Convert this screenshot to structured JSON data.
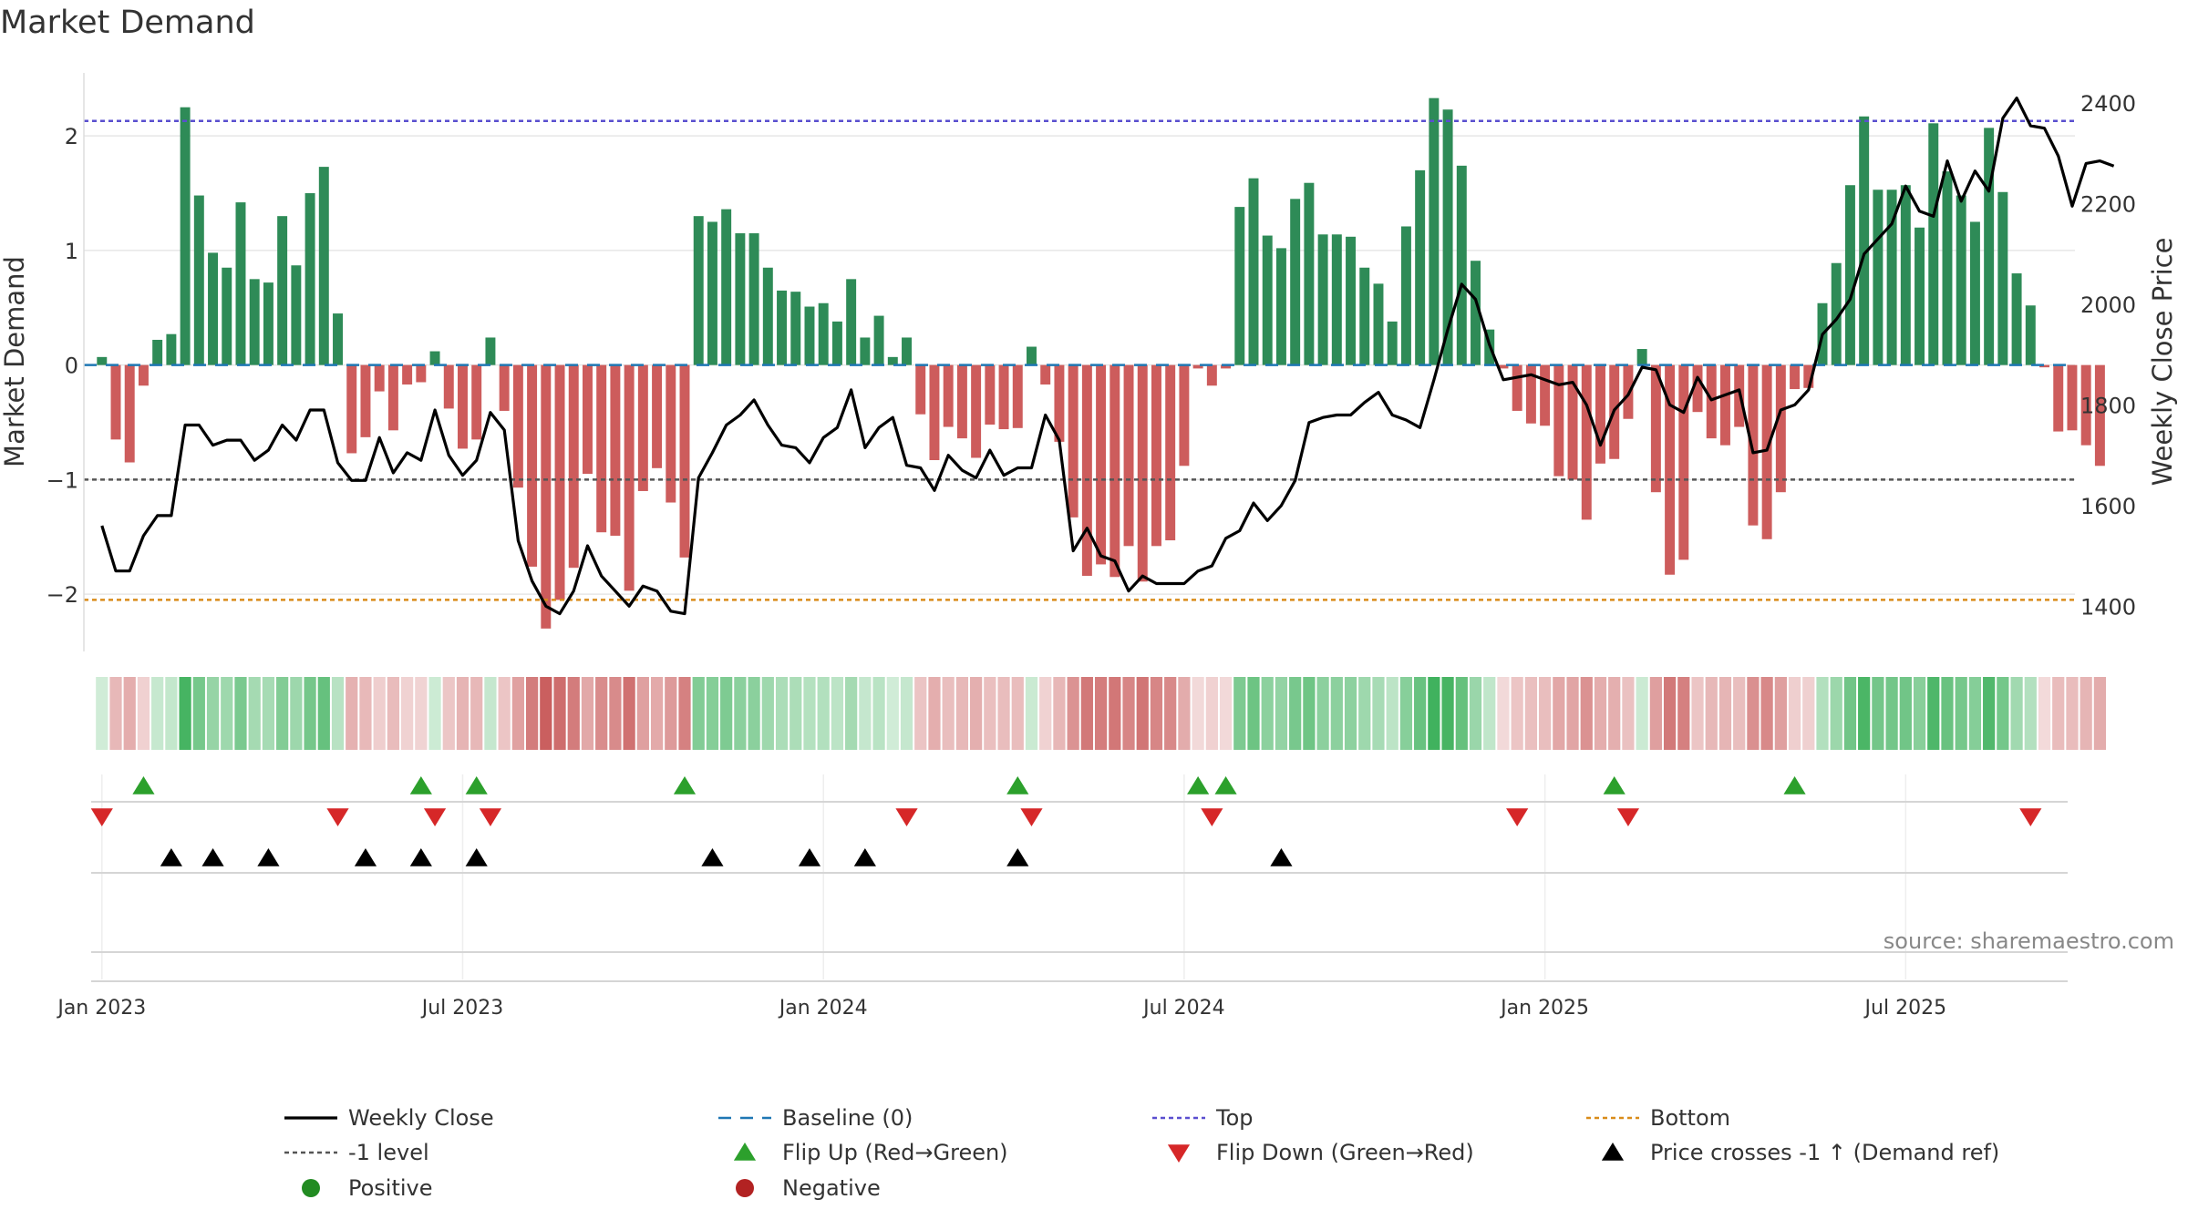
{
  "chart_data": {
    "type": "bar",
    "title": "Market Demand",
    "ylabel_left": "Market Demand",
    "ylabel_right": "Weekly Close Price",
    "source": "source: sharemaestro.com",
    "y_left_range": [
      -2.5,
      2.55
    ],
    "y_left_ticks": [
      {
        "v": 2,
        "label": "2"
      },
      {
        "v": 1,
        "label": "1"
      },
      {
        "v": 0,
        "label": "0"
      },
      {
        "v": -1,
        "label": "−1"
      },
      {
        "v": -2,
        "label": "−2"
      }
    ],
    "y_right_range": [
      1310,
      2460
    ],
    "y_right_ticks": [
      {
        "v": 2400,
        "label": "2400"
      },
      {
        "v": 2200,
        "label": "2200"
      },
      {
        "v": 2000,
        "label": "2000"
      },
      {
        "v": 1800,
        "label": "1800"
      },
      {
        "v": 1600,
        "label": "1600"
      },
      {
        "v": 1400,
        "label": "1400"
      }
    ],
    "x_ticks": [
      {
        "week": 0,
        "label": "Jan 2023"
      },
      {
        "week": 26,
        "label": "Jul 2023"
      },
      {
        "week": 52,
        "label": "Jan 2024"
      },
      {
        "week": 78,
        "label": "Jul 2024"
      },
      {
        "week": 104,
        "label": "Jan 2025"
      },
      {
        "week": 130,
        "label": "Jul 2025"
      }
    ],
    "weeks_range": [
      -1.3,
      142.2
    ],
    "levels": {
      "baseline": 0,
      "top": 2.13,
      "bottom": -2.05,
      "minus_one": -1
    },
    "demand": [
      0.07,
      -0.65,
      -0.85,
      -0.18,
      0.22,
      0.27,
      2.25,
      1.48,
      0.98,
      0.85,
      1.42,
      0.75,
      0.72,
      1.3,
      0.87,
      1.5,
      1.73,
      0.45,
      -0.77,
      -0.63,
      -0.23,
      -0.57,
      -0.17,
      -0.15,
      0.12,
      -0.38,
      -0.73,
      -0.65,
      0.24,
      -0.4,
      -1.07,
      -1.76,
      -2.3,
      -2.05,
      -1.77,
      -0.95,
      -1.46,
      -1.49,
      -1.97,
      -1.1,
      -0.9,
      -1.2,
      -1.68,
      1.3,
      1.25,
      1.36,
      1.15,
      1.15,
      0.85,
      0.65,
      0.64,
      0.51,
      0.54,
      0.38,
      0.75,
      0.24,
      0.43,
      0.07,
      0.24,
      -0.43,
      -0.83,
      -0.54,
      -0.64,
      -0.81,
      -0.52,
      -0.56,
      -0.55,
      0.16,
      -0.17,
      -0.67,
      -1.33,
      -1.84,
      -1.74,
      -1.85,
      -1.58,
      -1.89,
      -1.58,
      -1.53,
      -0.88,
      -0.03,
      -0.18,
      -0.03,
      1.38,
      1.63,
      1.13,
      1.02,
      1.45,
      1.59,
      1.14,
      1.14,
      1.12,
      0.85,
      0.71,
      0.38,
      1.21,
      1.7,
      2.33,
      2.23,
      1.74,
      0.91,
      0.31,
      -0.03,
      -0.4,
      -0.51,
      -0.53,
      -0.97,
      -1.0,
      -1.35,
      -0.86,
      -0.82,
      -0.47,
      0.14,
      -1.11,
      -1.83,
      -1.7,
      -0.41,
      -0.64,
      -0.7,
      -0.54,
      -1.4,
      -1.52,
      -1.11,
      -0.21,
      -0.2,
      0.54,
      0.89,
      1.57,
      2.17,
      1.53,
      1.53,
      1.57,
      1.2,
      2.11,
      1.69,
      1.48,
      1.25,
      2.07,
      1.51,
      0.8,
      0.52,
      -0.02,
      -0.58,
      -0.57,
      -0.7,
      -0.88
    ],
    "close": [
      1560,
      1470,
      1470,
      1540,
      1580,
      1580,
      1760,
      1760,
      1720,
      1730,
      1730,
      1690,
      1710,
      1760,
      1730,
      1790,
      1790,
      1685,
      1650,
      1650,
      1735,
      1665,
      1705,
      1690,
      1790,
      1700,
      1660,
      1690,
      1785,
      1750,
      1530,
      1450,
      1400,
      1385,
      1430,
      1520,
      1460,
      1430,
      1400,
      1440,
      1430,
      1390,
      1385,
      1655,
      1705,
      1760,
      1780,
      1810,
      1760,
      1720,
      1715,
      1685,
      1735,
      1755,
      1830,
      1715,
      1755,
      1775,
      1680,
      1675,
      1630,
      1700,
      1670,
      1655,
      1710,
      1660,
      1675,
      1675,
      1780,
      1730,
      1510,
      1555,
      1500,
      1490,
      1430,
      1460,
      1445,
      1445,
      1445,
      1470,
      1480,
      1535,
      1550,
      1605,
      1570,
      1600,
      1650,
      1765,
      1775,
      1780,
      1780,
      1805,
      1825,
      1780,
      1770,
      1755,
      1850,
      1950,
      2040,
      2010,
      1920,
      1850,
      1855,
      1860,
      1850,
      1840,
      1845,
      1800,
      1720,
      1790,
      1820,
      1875,
      1870,
      1800,
      1785,
      1855,
      1810,
      1820,
      1830,
      1705,
      1710,
      1790,
      1800,
      1830,
      1940,
      1970,
      2010,
      2100,
      2130,
      2160,
      2235,
      2185,
      2175,
      2285,
      2205,
      2265,
      2225,
      2370,
      2410,
      2355,
      2350,
      2295,
      2195,
      2280,
      2285,
      2275
    ],
    "flip_up_weeks": [
      3,
      23,
      27,
      42,
      66,
      79,
      81,
      109,
      122
    ],
    "flip_down_weeks": [
      0,
      17,
      24,
      28,
      58,
      67,
      80,
      102,
      110,
      139
    ],
    "cross_weeks": [
      5,
      8,
      12,
      19,
      23,
      27,
      44,
      51,
      55,
      66,
      85
    ],
    "legend": [
      {
        "label": "Weekly Close",
        "kind": "line",
        "color": "#000000"
      },
      {
        "label": "Baseline (0)",
        "kind": "dashed",
        "color": "#1f77b4"
      },
      {
        "label": "Top",
        "kind": "dotted",
        "color": "#5a4fcf"
      },
      {
        "label": "Bottom",
        "kind": "dotted",
        "color": "#d98c1a"
      },
      {
        "label": "-1 level",
        "kind": "dotted",
        "color": "#555555"
      },
      {
        "label": "Flip Up (Red→Green)",
        "kind": "tri-up",
        "color": "#2ca02c"
      },
      {
        "label": "Flip Down (Green→Red)",
        "kind": "tri-down",
        "color": "#d62728"
      },
      {
        "label": "Price crosses -1 ↑ (Demand ref)",
        "kind": "tri-up",
        "color": "#000000"
      },
      {
        "label": "Positive",
        "kind": "dot",
        "color": "#228b22"
      },
      {
        "label": "Negative",
        "kind": "dot",
        "color": "#b22222"
      }
    ],
    "colors": {
      "positive_bar": "#2e8b57",
      "negative_bar": "#cd5c5c",
      "price_line": "#000000",
      "strip_green": "#3cb05a",
      "strip_red": "#c85a5a",
      "flip_up": "#2ca02c",
      "flip_down": "#d62728",
      "cross": "#000000",
      "grid": "#e6e6e6",
      "text": "#333333"
    }
  }
}
